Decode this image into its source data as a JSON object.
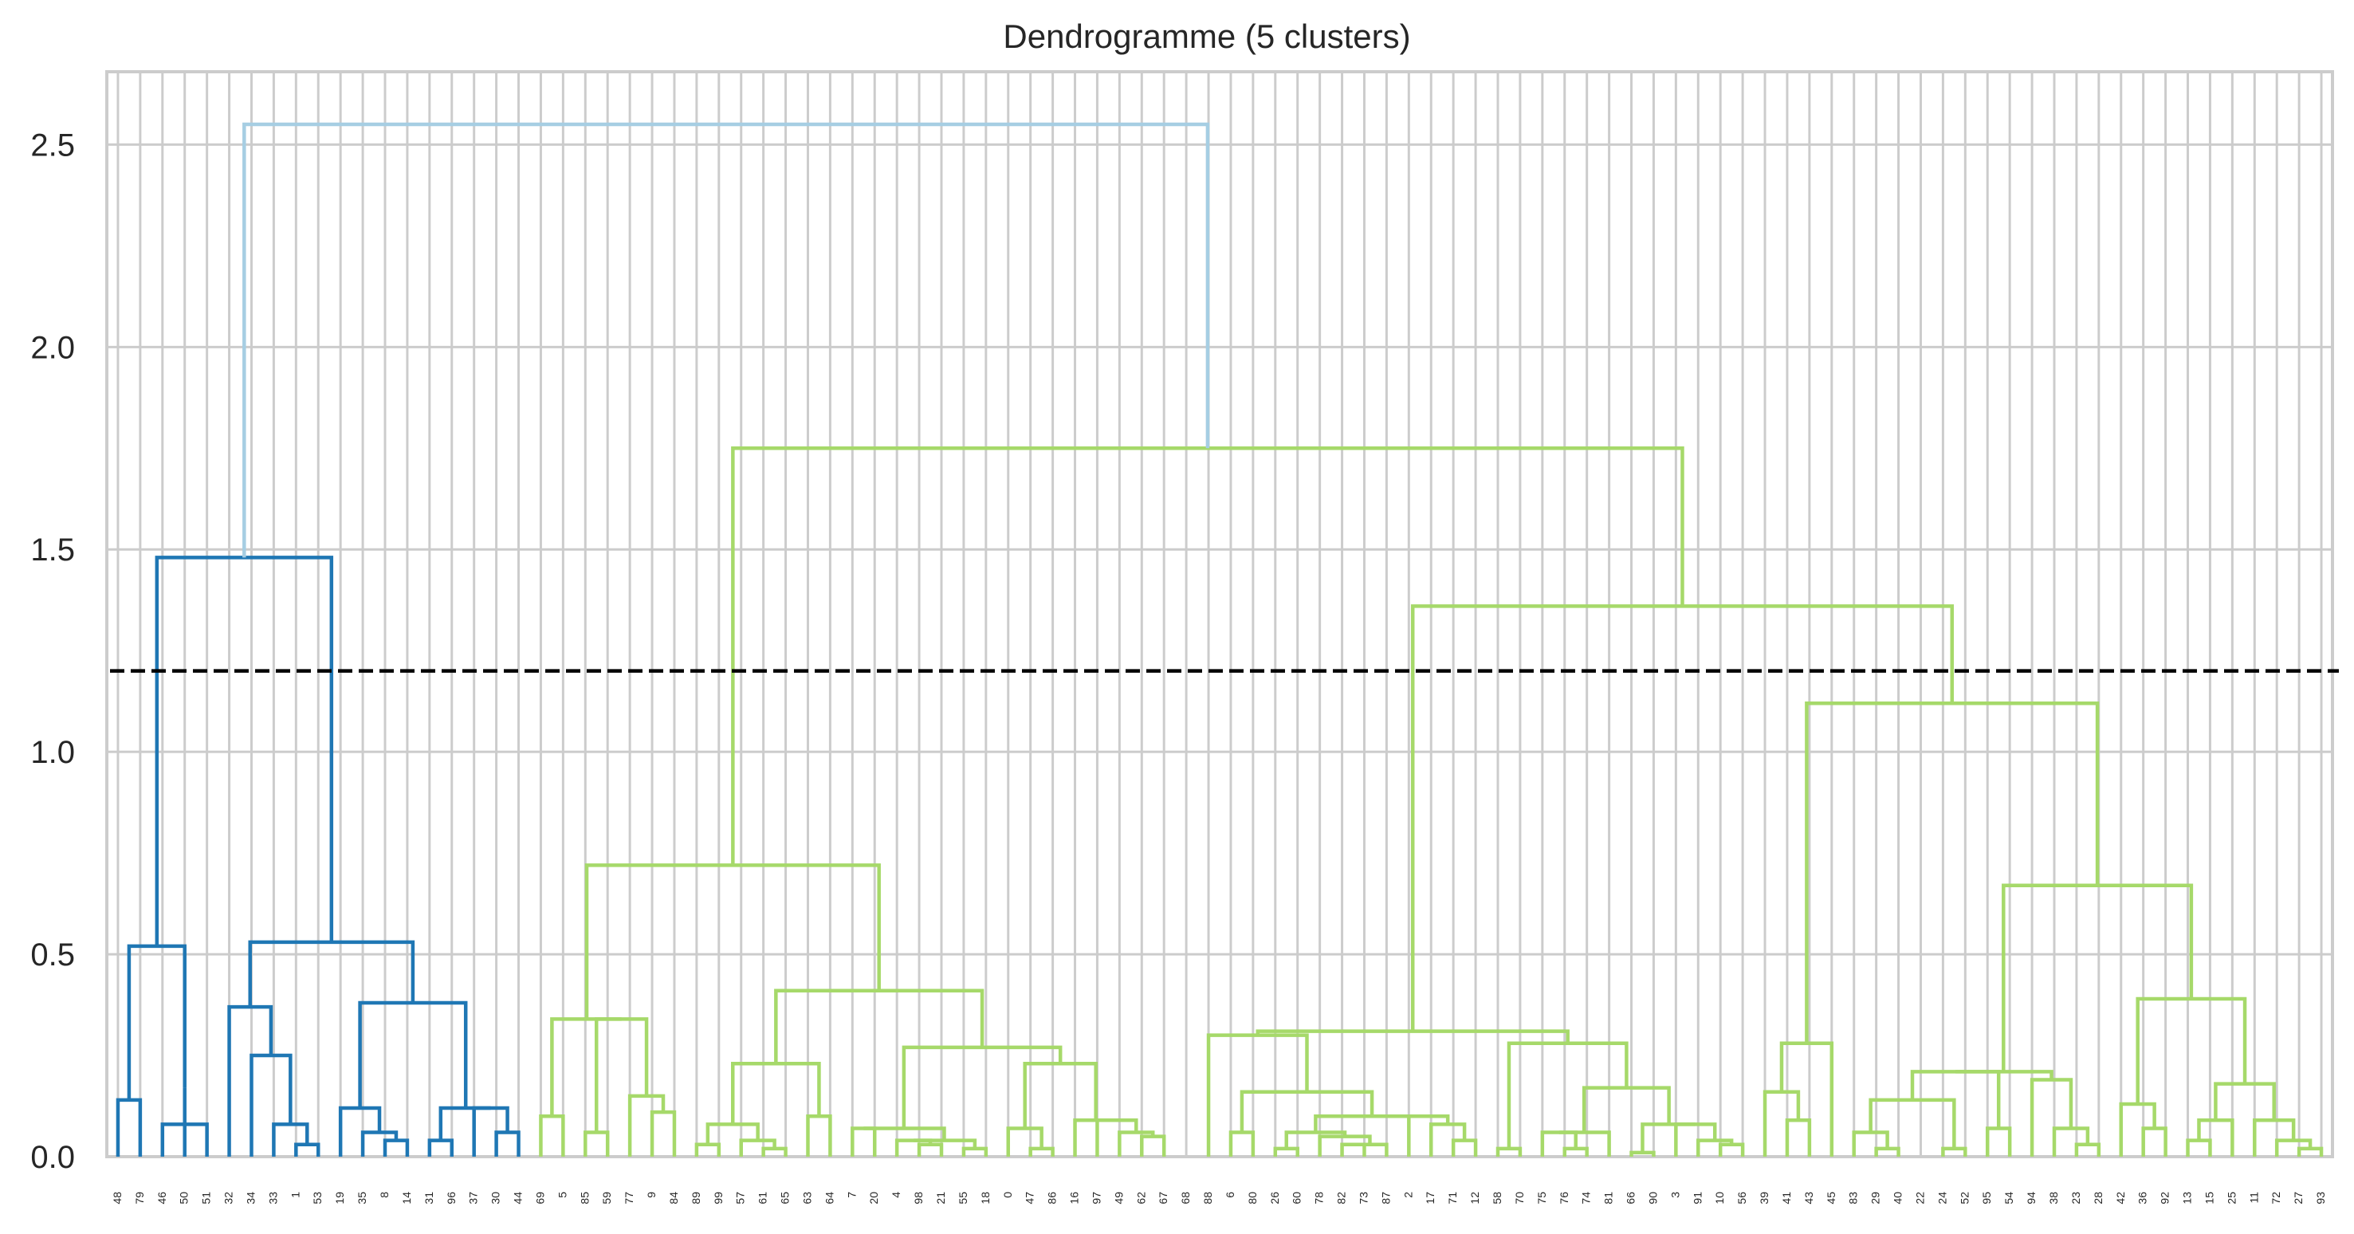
{
  "chart_data": {
    "type": "dendrogram",
    "title": "Dendrogramme (5 clusters)",
    "xlabel": "",
    "ylabel": "",
    "ylim": [
      0,
      2.68
    ],
    "yticks": [
      "0.0",
      "0.5",
      "1.0",
      "1.5",
      "2.0",
      "2.5"
    ],
    "grid": true,
    "cut_height": 1.2,
    "leaf_order": [
      48,
      79,
      46,
      50,
      51,
      32,
      34,
      33,
      1,
      53,
      19,
      35,
      8,
      14,
      31,
      96,
      37,
      30,
      44,
      69,
      5,
      85,
      59,
      77,
      9,
      84,
      89,
      99,
      57,
      61,
      65,
      63,
      64,
      7,
      20,
      4,
      98,
      21,
      55,
      18,
      0,
      47,
      86,
      16,
      97,
      49,
      62,
      67,
      68,
      88,
      6,
      80,
      26,
      60,
      78,
      82,
      73,
      87,
      2,
      17,
      71,
      12,
      58,
      70,
      75,
      76,
      74,
      81,
      66,
      90,
      3,
      91,
      10,
      56,
      39,
      41,
      43,
      45,
      83,
      29,
      40,
      22,
      24,
      52,
      95,
      54,
      94,
      38,
      23,
      28,
      42,
      36,
      92,
      13,
      15,
      25,
      11,
      72,
      27,
      93
    ],
    "colors": {
      "cluster_a": "#1f77b4",
      "cluster_b": "#a6d96a",
      "above_threshold": "#a6cee3",
      "cut_line": "#000000",
      "grid": "#cccccc"
    },
    "merges": [
      {
        "left": "48",
        "right": "79",
        "height": 0.14
      },
      {
        "left": "51",
        "right": "46",
        "height": 0.08
      },
      {
        "left": "50",
        "right": "m2",
        "height": 0.17
      },
      {
        "left": "m1",
        "right": "m3",
        "height": 0.52
      },
      {
        "left": "1",
        "right": "53",
        "height": 0.03
      },
      {
        "left": "33",
        "right": "m5",
        "height": 0.08
      },
      {
        "left": "34",
        "right": "m6",
        "height": 0.25
      },
      {
        "left": "32",
        "right": "m7",
        "height": 0.37
      },
      {
        "left": "8",
        "right": "14",
        "height": 0.04
      },
      {
        "left": "35",
        "right": "m9",
        "height": 0.06
      },
      {
        "left": "19",
        "right": "m10",
        "height": 0.12
      },
      {
        "left": "30",
        "right": "44",
        "height": 0.06
      },
      {
        "left": "31",
        "right": "96",
        "height": 0.04
      },
      {
        "left": "37",
        "right": "m12",
        "height": 0.12
      },
      {
        "left": "m13",
        "right": "m14",
        "height": 0.12
      },
      {
        "left": "m11",
        "right": "m15",
        "height": 0.38
      },
      {
        "left": "m8",
        "right": "m16",
        "height": 0.53
      },
      {
        "left": "m4",
        "right": "m17",
        "height": 1.48
      },
      {
        "left": "69",
        "right": "5",
        "height": 0.1
      },
      {
        "left": "85",
        "right": "59",
        "height": 0.06
      },
      {
        "left": "9",
        "right": "84",
        "height": 0.11
      },
      {
        "left": "77",
        "right": "m21",
        "height": 0.15
      },
      {
        "left": "m20",
        "right": "m22",
        "height": 0.34
      },
      {
        "left": "m19",
        "right": "m23",
        "height": 0.34
      },
      {
        "left": "89",
        "right": "99",
        "height": 0.03
      },
      {
        "left": "61",
        "right": "65",
        "height": 0.02
      },
      {
        "left": "57",
        "right": "m26",
        "height": 0.04
      },
      {
        "left": "m25",
        "right": "m27",
        "height": 0.08
      },
      {
        "left": "63",
        "right": "64",
        "height": 0.1
      },
      {
        "left": "m28",
        "right": "m29",
        "height": 0.23
      },
      {
        "left": "98",
        "right": "21",
        "height": 0.03
      },
      {
        "left": "4",
        "right": "m31",
        "height": 0.04
      },
      {
        "left": "55",
        "right": "18",
        "height": 0.02
      },
      {
        "left": "m32",
        "right": "m33",
        "height": 0.04
      },
      {
        "left": "7",
        "right": "20",
        "height": 0.07
      },
      {
        "left": "m35",
        "right": "m34",
        "height": 0.07
      },
      {
        "left": "47",
        "right": "86",
        "height": 0.02
      },
      {
        "left": "0",
        "right": "m37",
        "height": 0.07
      },
      {
        "left": "62",
        "right": "67",
        "height": 0.05
      },
      {
        "left": "49",
        "right": "m39",
        "height": 0.06
      },
      {
        "left": "97",
        "right": "m40",
        "height": 0.09
      },
      {
        "left": "16",
        "right": "m41",
        "height": 0.09
      },
      {
        "left": "m38",
        "right": "m42",
        "height": 0.23
      },
      {
        "left": "m36",
        "right": "m43",
        "height": 0.27
      },
      {
        "left": "m30",
        "right": "m44",
        "height": 0.41
      },
      {
        "left": "m24",
        "right": "m45",
        "height": 0.72
      },
      {
        "left": "6",
        "right": "80",
        "height": 0.06
      },
      {
        "left": "26",
        "right": "60",
        "height": 0.02
      },
      {
        "left": "82",
        "right": "73",
        "height": 0.03
      },
      {
        "left": "m49",
        "right": "87",
        "height": 0.03
      },
      {
        "left": "78",
        "right": "m50",
        "height": 0.05
      },
      {
        "left": "m48",
        "right": "m51",
        "height": 0.06
      },
      {
        "left": "71",
        "right": "12",
        "height": 0.04
      },
      {
        "left": "17",
        "right": "m53",
        "height": 0.08
      },
      {
        "left": "2",
        "right": "m54",
        "height": 0.1
      },
      {
        "left": "m52",
        "right": "m55",
        "height": 0.1
      },
      {
        "left": "m47",
        "right": "m56",
        "height": 0.16
      },
      {
        "left": "88",
        "right": "m57",
        "height": 0.3
      },
      {
        "left": "76",
        "right": "74",
        "height": 0.02
      },
      {
        "left": "75",
        "right": "m59",
        "height": 0.06
      },
      {
        "left": "m60",
        "right": "81",
        "height": 0.06
      },
      {
        "left": "66",
        "right": "90",
        "height": 0.01
      },
      {
        "left": "10",
        "right": "56",
        "height": 0.03
      },
      {
        "left": "91",
        "right": "m63",
        "height": 0.04
      },
      {
        "left": "3",
        "right": "m64",
        "height": 0.08
      },
      {
        "left": "m62",
        "right": "m65",
        "height": 0.08
      },
      {
        "left": "m61",
        "right": "m66",
        "height": 0.17
      },
      {
        "left": "58",
        "right": "70",
        "height": 0.02
      },
      {
        "left": "m68",
        "right": "m67",
        "height": 0.28
      },
      {
        "left": "m58",
        "right": "m69",
        "height": 0.31
      },
      {
        "left": "41",
        "right": "43",
        "height": 0.09
      },
      {
        "left": "39",
        "right": "m71",
        "height": 0.16
      },
      {
        "left": "m72",
        "right": "45",
        "height": 0.28
      },
      {
        "left": "29",
        "right": "40",
        "height": 0.02
      },
      {
        "left": "83",
        "right": "m74",
        "height": 0.06
      },
      {
        "left": "24",
        "right": "52",
        "height": 0.02
      },
      {
        "left": "m75",
        "right": "m76",
        "height": 0.14
      },
      {
        "left": "95",
        "right": "54",
        "height": 0.07
      },
      {
        "left": "m77",
        "right": "m78",
        "height": 0.21
      },
      {
        "left": "23",
        "right": "28",
        "height": 0.03
      },
      {
        "left": "38",
        "right": "m80",
        "height": 0.07
      },
      {
        "left": "94",
        "right": "m81",
        "height": 0.19
      },
      {
        "left": "m79",
        "right": "m82",
        "height": 0.21
      },
      {
        "left": "36",
        "right": "92",
        "height": 0.07
      },
      {
        "left": "42",
        "right": "m84",
        "height": 0.13
      },
      {
        "left": "13",
        "right": "15",
        "height": 0.04
      },
      {
        "left": "m86",
        "right": "25",
        "height": 0.09
      },
      {
        "left": "27",
        "right": "93",
        "height": 0.02
      },
      {
        "left": "72",
        "right": "m88",
        "height": 0.04
      },
      {
        "left": "11",
        "right": "m89",
        "height": 0.09
      },
      {
        "left": "m87",
        "right": "m90",
        "height": 0.18
      },
      {
        "left": "m85",
        "right": "m91",
        "height": 0.39
      },
      {
        "left": "m83",
        "right": "m92",
        "height": 0.67
      },
      {
        "left": "m73",
        "right": "m93",
        "height": 1.12
      },
      {
        "left": "m70",
        "right": "m94",
        "height": 1.36
      },
      {
        "left": "m46",
        "right": "m95",
        "height": 1.75
      },
      {
        "left": "m18",
        "right": "m96",
        "height": 2.55
      }
    ]
  }
}
